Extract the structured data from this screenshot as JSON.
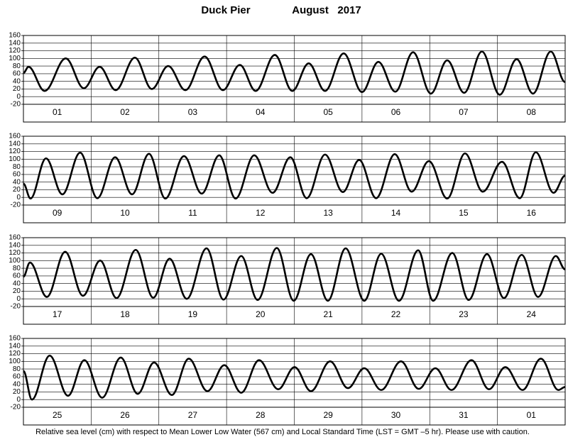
{
  "title": "Duck Pier",
  "month_year": "August   2017",
  "footnote": "Relative sea level (cm) with respect to Mean Lower Low Water (567 cm) and Local Standard Time (LST = GMT –5 hr). Please use with caution.",
  "chart_data": [
    {
      "type": "line",
      "categories": [
        "01",
        "02",
        "03",
        "04",
        "05",
        "06",
        "07",
        "08"
      ],
      "xlim": [
        0,
        192
      ],
      "ylim": [
        -20,
        160
      ],
      "yticks": [
        -20,
        0,
        20,
        40,
        60,
        80,
        100,
        120,
        140,
        160
      ],
      "grid": true,
      "x": [
        0,
        1.8,
        7.5,
        15,
        21.4,
        27,
        32.7,
        39.5,
        45.5,
        51.3,
        57.4,
        64.2,
        70.7,
        76.7,
        82.3,
        89.1,
        95.3,
        101.1,
        106.9,
        113.5,
        120,
        125.8,
        131.8,
        138.1,
        144.4,
        150.2,
        156.2,
        162.5,
        168.8,
        174.8,
        180.6,
        186.9,
        192
      ],
      "series": [
        {
          "color": "#000000",
          "values": [
            62,
            78,
            15,
            100,
            22,
            78,
            17,
            102,
            20,
            80,
            17,
            105,
            17,
            83,
            15,
            109,
            15,
            87,
            15,
            113,
            12,
            91,
            13,
            116,
            8,
            95,
            10,
            118,
            5,
            98,
            8,
            118,
            38
          ]
        }
      ]
    },
    {
      "type": "line",
      "categories": [
        "09",
        "10",
        "11",
        "12",
        "13",
        "14",
        "15",
        "16"
      ],
      "xlim": [
        0,
        192
      ],
      "ylim": [
        -20,
        160
      ],
      "yticks": [
        -20,
        0,
        20,
        40,
        60,
        80,
        100,
        120,
        140,
        160
      ],
      "grid": true,
      "x": [
        0,
        2.5,
        8,
        13.8,
        20.1,
        26.2,
        32.5,
        38.5,
        44.5,
        50.3,
        56.9,
        63.2,
        69.4,
        75.2,
        81.8,
        88.3,
        94.6,
        100.4,
        106.9,
        113.2,
        119,
        125,
        131.6,
        137.6,
        143.7,
        150.2,
        156.5,
        162.8,
        169.6,
        175.9,
        181.6,
        187.9,
        192
      ],
      "series": [
        {
          "color": "#000000",
          "values": [
            36,
            -3,
            102,
            8,
            117,
            -2,
            105,
            8,
            114,
            -3,
            108,
            10,
            110,
            -3,
            110,
            12,
            105,
            -2,
            112,
            14,
            98,
            -2,
            113,
            15,
            95,
            -3,
            115,
            15,
            93,
            -2,
            118,
            12,
            57
          ]
        }
      ]
    },
    {
      "type": "line",
      "categories": [
        "17",
        "18",
        "19",
        "20",
        "21",
        "22",
        "23",
        "24"
      ],
      "xlim": [
        0,
        192
      ],
      "ylim": [
        -20,
        160
      ],
      "yticks": [
        -20,
        0,
        20,
        40,
        60,
        80,
        100,
        120,
        140,
        160
      ],
      "grid": true,
      "x": [
        0,
        2.3,
        8.3,
        14.8,
        21.1,
        27.2,
        33,
        39.8,
        46,
        51.8,
        57.9,
        64.9,
        70.9,
        77.2,
        83,
        89.8,
        95.8,
        101.9,
        107.9,
        114.2,
        120.8,
        126.8,
        133.1,
        139.9,
        145.2,
        152,
        157.8,
        164.3,
        170.3,
        176.6,
        182.4,
        188.7,
        192
      ],
      "series": [
        {
          "color": "#000000",
          "values": [
            58,
            95,
            5,
            123,
            8,
            100,
            2,
            128,
            3,
            105,
            0,
            132,
            -2,
            112,
            -3,
            133,
            -5,
            117,
            -5,
            132,
            -5,
            118,
            -5,
            127,
            -5,
            120,
            -3,
            117,
            2,
            115,
            5,
            112,
            77
          ]
        }
      ]
    },
    {
      "type": "line",
      "categories": [
        "25",
        "26",
        "27",
        "28",
        "29",
        "30",
        "31",
        "01"
      ],
      "xlim": [
        0,
        192
      ],
      "ylim": [
        -20,
        160
      ],
      "yticks": [
        -20,
        0,
        20,
        40,
        60,
        80,
        100,
        120,
        140,
        160
      ],
      "grid": true,
      "x": [
        0,
        3,
        9.3,
        15.8,
        21.6,
        27.9,
        34.5,
        40.5,
        46.3,
        52.6,
        58.6,
        65.2,
        71.2,
        77.2,
        83.5,
        90.3,
        96.1,
        101.9,
        108.7,
        115,
        120.8,
        126.8,
        133.8,
        140.1,
        146,
        151.7,
        158.8,
        165,
        170.8,
        176.9,
        183.4,
        189.6,
        192
      ],
      "series": [
        {
          "color": "#000000",
          "values": [
            75,
            0,
            115,
            10,
            103,
            5,
            110,
            15,
            97,
            12,
            107,
            22,
            90,
            18,
            103,
            27,
            85,
            22,
            100,
            30,
            82,
            25,
            100,
            28,
            82,
            25,
            103,
            27,
            85,
            25,
            107,
            25,
            33
          ]
        }
      ]
    }
  ]
}
